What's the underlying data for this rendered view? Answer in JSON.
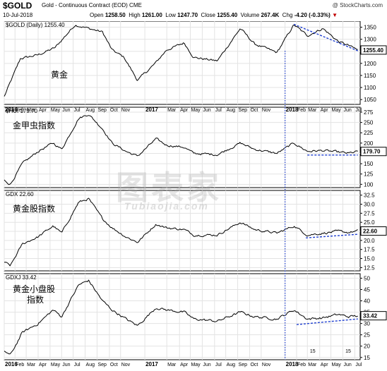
{
  "header": {
    "symbol": "$GOLD",
    "description": "Gold - Continuous Contract (EOD)  CME",
    "date": "10-Jul-2018",
    "open_label": "Open",
    "open": "1258.50",
    "high_label": "High",
    "high": "1261.00",
    "low_label": "Low",
    "low": "1247.70",
    "close_label": "Close",
    "close": "1255.40",
    "volume_label": "Volume",
    "volume": "267.4K",
    "chg_label": "Chg",
    "chg": "-4.20 (-0.33%)",
    "source": "@ StockCharts.com"
  },
  "watermark": {
    "cn": "图表家",
    "en": "Tubiaojia.com"
  },
  "chart_data": [
    {
      "type": "line",
      "panel_label": "$GOLD (Daily) 1255.40",
      "annotation": "黄金",
      "last_value": 1255.4,
      "last_label": "1255.40",
      "ylim": [
        1030,
        1375
      ],
      "yticks": [
        1050,
        1100,
        1150,
        1200,
        1250,
        1300,
        1350
      ],
      "ytick_labels": [
        "1050",
        "1100",
        "1150",
        "1200",
        "1250",
        "1300",
        "1350"
      ],
      "x_dates": [
        "2016-01-04",
        "2016-02-15",
        "2016-04-01",
        "2016-05-15",
        "2016-07-06",
        "2016-08-10",
        "2016-09-15",
        "2016-10-10",
        "2016-11-10",
        "2016-12-15",
        "2017-01-30",
        "2017-02-28",
        "2017-04-15",
        "2017-05-10",
        "2017-07-10",
        "2017-09-08",
        "2017-10-15",
        "2017-12-12",
        "2018-01-25",
        "2018-03-01",
        "2018-04-10",
        "2018-05-21",
        "2018-06-15",
        "2018-07-10"
      ],
      "values": [
        1062,
        1220,
        1235,
        1265,
        1360,
        1345,
        1330,
        1255,
        1225,
        1130,
        1200,
        1255,
        1285,
        1225,
        1210,
        1345,
        1280,
        1245,
        1360,
        1315,
        1345,
        1290,
        1275,
        1255
      ],
      "trendline": {
        "x": [
          "2018-01-25",
          "2018-07-10"
        ],
        "y": [
          1362,
          1252
        ]
      }
    },
    {
      "type": "line",
      "panel_label": "$HUI 179.70",
      "annotation": "金甲虫指数",
      "last_value": 179.7,
      "last_label": "179.70",
      "ylim": [
        92,
        287
      ],
      "yticks": [
        100,
        125,
        150,
        175,
        200,
        225,
        250,
        275
      ],
      "ytick_labels": [
        "100",
        "125",
        "150",
        "175",
        "200",
        "225",
        "250",
        "275"
      ],
      "x_dates": [
        "2016-01-04",
        "2016-01-20",
        "2016-02-20",
        "2016-04-01",
        "2016-05-10",
        "2016-06-01",
        "2016-07-15",
        "2016-08-10",
        "2016-09-15",
        "2016-10-10",
        "2016-11-15",
        "2016-12-15",
        "2017-02-01",
        "2017-02-28",
        "2017-04-15",
        "2017-05-10",
        "2017-07-10",
        "2017-09-08",
        "2017-10-15",
        "2017-12-12",
        "2018-01-25",
        "2018-03-01",
        "2018-04-10",
        "2018-05-21",
        "2018-06-15",
        "2018-07-10"
      ],
      "values": [
        110,
        100,
        150,
        180,
        200,
        185,
        260,
        270,
        235,
        200,
        180,
        168,
        210,
        195,
        190,
        175,
        172,
        200,
        185,
        175,
        200,
        180,
        182,
        178,
        175,
        179.7
      ],
      "trendline": {
        "x": [
          "2018-03-01",
          "2018-07-10"
        ],
        "y": [
          171,
          171
        ]
      }
    },
    {
      "type": "line",
      "panel_label": "GDX 22.60",
      "annotation": "黄金股指数",
      "last_value": 22.6,
      "last_label": "22.60",
      "ylim": [
        11.6,
        33.8
      ],
      "yticks": [
        12.5,
        15.0,
        17.5,
        20.0,
        22.5,
        25.0,
        27.5,
        30.0,
        32.5
      ],
      "ytick_labels": [
        "12.5",
        "15.0",
        "17.5",
        "20.0",
        "22.5",
        "25.0",
        "27.5",
        "30.0",
        "32.5"
      ],
      "x_dates": [
        "2016-01-04",
        "2016-01-20",
        "2016-02-20",
        "2016-04-01",
        "2016-05-10",
        "2016-06-01",
        "2016-07-15",
        "2016-08-10",
        "2016-09-15",
        "2016-10-10",
        "2016-11-15",
        "2016-12-15",
        "2017-02-01",
        "2017-02-28",
        "2017-04-15",
        "2017-05-10",
        "2017-07-10",
        "2017-09-08",
        "2017-10-15",
        "2017-12-12",
        "2018-01-25",
        "2018-03-01",
        "2018-04-10",
        "2018-05-21",
        "2018-06-15",
        "2018-07-10"
      ],
      "values": [
        14,
        13,
        19,
        21,
        24,
        22,
        30.5,
        31.5,
        26,
        23.5,
        21,
        19.5,
        24.5,
        23.5,
        23,
        21.5,
        21.5,
        25,
        23,
        22,
        24,
        21.5,
        22,
        22.5,
        22.2,
        22.6
      ],
      "trendline": {
        "x": [
          "2018-02-25",
          "2018-07-10"
        ],
        "y": [
          20.7,
          21.7
        ]
      }
    },
    {
      "type": "line",
      "panel_label": "GDXJ 33.42",
      "annotation": "黄金小盘股\n指数",
      "last_value": 33.42,
      "last_label": "33.42",
      "ylim": [
        14,
        52
      ],
      "yticks": [
        15,
        20,
        25,
        30,
        35,
        40,
        45,
        50
      ],
      "ytick_labels": [
        "15",
        "20",
        "25",
        "30",
        "35",
        "40",
        "45",
        "50"
      ],
      "x_dates": [
        "2016-01-04",
        "2016-01-20",
        "2016-02-20",
        "2016-04-01",
        "2016-05-10",
        "2016-06-01",
        "2016-07-15",
        "2016-08-10",
        "2016-09-15",
        "2016-10-10",
        "2016-11-15",
        "2016-12-15",
        "2017-02-01",
        "2017-02-28",
        "2017-04-15",
        "2017-05-10",
        "2017-07-10",
        "2017-09-08",
        "2017-10-15",
        "2017-12-12",
        "2018-01-25",
        "2018-03-01",
        "2018-04-10",
        "2018-05-21",
        "2018-06-15",
        "2018-07-10"
      ],
      "values": [
        18,
        16,
        26,
        30,
        36,
        33,
        47,
        49,
        40,
        36,
        32,
        29,
        37,
        36,
        35,
        32,
        31,
        35,
        33,
        32,
        36,
        32,
        32.5,
        34,
        33,
        33.42
      ],
      "trendline": {
        "x": [
          "2018-02-01",
          "2018-07-10"
        ],
        "y": [
          29.5,
          32
        ]
      }
    }
  ],
  "x_axis": {
    "labels": [
      {
        "text": "2016",
        "date": "2016-01-04",
        "bold": true
      },
      {
        "text": "Feb",
        "date": "2016-02-01"
      },
      {
        "text": "Mar",
        "date": "2016-03-01"
      },
      {
        "text": "Apr",
        "date": "2016-04-01"
      },
      {
        "text": "May",
        "date": "2016-05-02"
      },
      {
        "text": "Jun",
        "date": "2016-06-01"
      },
      {
        "text": "Jul",
        "date": "2016-07-01"
      },
      {
        "text": "Aug",
        "date": "2016-08-01"
      },
      {
        "text": "Sep",
        "date": "2016-09-01"
      },
      {
        "text": "Oct",
        "date": "2016-10-03"
      },
      {
        "text": "Nov",
        "date": "2016-11-01"
      },
      {
        "text": "2017",
        "date": "2017-01-03",
        "bold": true
      },
      {
        "text": "Mar",
        "date": "2017-03-01"
      },
      {
        "text": "Apr",
        "date": "2017-04-03"
      },
      {
        "text": "May",
        "date": "2017-05-01"
      },
      {
        "text": "Jun",
        "date": "2017-06-01"
      },
      {
        "text": "Jul",
        "date": "2017-07-03"
      },
      {
        "text": "Aug",
        "date": "2017-08-01"
      },
      {
        "text": "Sep",
        "date": "2017-09-01"
      },
      {
        "text": "Oct",
        "date": "2017-10-02"
      },
      {
        "text": "Nov",
        "date": "2017-11-01"
      },
      {
        "text": "2018",
        "date": "2018-01-02",
        "bold": true
      },
      {
        "text": "Feb",
        "date": "2018-02-01"
      },
      {
        "text": "Mar",
        "date": "2018-03-01"
      },
      {
        "text": "Apr",
        "date": "2018-04-02"
      },
      {
        "text": "May",
        "date": "2018-05-01"
      },
      {
        "text": "Jun",
        "date": "2018-06-01"
      },
      {
        "text": "Jul",
        "date": "2018-07-02"
      }
    ],
    "marker_date": "2018-01-02",
    "extra_labels": [
      {
        "text": "15",
        "date": "2018-03-15"
      },
      {
        "text": "15",
        "date": "2018-06-15"
      }
    ]
  },
  "colors": {
    "price_line": "#000000",
    "trendline": "#1f3fd0",
    "marker_line": "#1f3fd0",
    "grid": "#e3e3e3",
    "panel_border": "#000000",
    "label_box": "#000000"
  }
}
